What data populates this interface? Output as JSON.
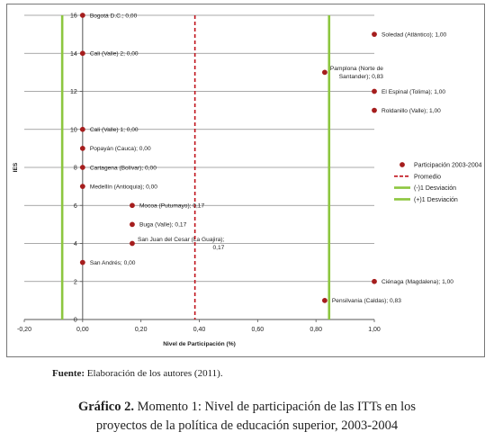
{
  "chart_data": {
    "type": "scatter",
    "xlabel": "Nivel de Participación  (%)",
    "ylabel": "IES",
    "xlim": [
      -0.2,
      1.0
    ],
    "ylim": [
      0,
      16
    ],
    "x_ticks": [
      "-0,20",
      "0,00",
      "0,20",
      "0,40",
      "0,60",
      "0,80",
      "1,00"
    ],
    "x_tick_values": [
      -0.2,
      0.0,
      0.2,
      0.4,
      0.6,
      0.8,
      1.0
    ],
    "y_ticks": [
      "0",
      "2",
      "4",
      "6",
      "8",
      "10",
      "12",
      "14",
      "16"
    ],
    "y_tick_values": [
      0,
      2,
      4,
      6,
      8,
      10,
      12,
      14,
      16
    ],
    "grid": "horizontal",
    "legend_position": "right",
    "points": [
      {
        "x": 0.0,
        "y": 16,
        "label": "Bogotá D.C.; 0,00"
      },
      {
        "x": 1.0,
        "y": 15,
        "label": "Soledad (Atlántico); 1,00"
      },
      {
        "x": 0.0,
        "y": 14,
        "label": "Cali (Valle) 2; 0,00"
      },
      {
        "x": 0.83,
        "y": 13,
        "label_lines": [
          "Pamplona (Norte de",
          "Santander); 0,83"
        ]
      },
      {
        "x": 1.0,
        "y": 12,
        "label": "El Espinal (Tolima); 1,00"
      },
      {
        "x": 1.0,
        "y": 11,
        "label": "Roldanillo (Valle); 1,00"
      },
      {
        "x": 0.0,
        "y": 10,
        "label": "Cali (Valle) 1; 0,00"
      },
      {
        "x": 0.0,
        "y": 9,
        "label": "Popayán (Cauca); 0,00"
      },
      {
        "x": 0.0,
        "y": 8,
        "label": "Cartagena (Bolívar); 0,00"
      },
      {
        "x": 0.0,
        "y": 7,
        "label": "Medellín (Antioquia); 0,00"
      },
      {
        "x": 0.17,
        "y": 6,
        "label": "Mocoa (Putumayo); 0,17"
      },
      {
        "x": 0.17,
        "y": 5,
        "label": "Buga (Valle); 0,17"
      },
      {
        "x": 0.17,
        "y": 4,
        "label_lines": [
          "San Juan del Cesar (La Guajira);",
          "0,17"
        ]
      },
      {
        "x": 0.0,
        "y": 3,
        "label": "San Andrés; 0,00"
      },
      {
        "x": 1.0,
        "y": 2,
        "label": "Ciénaga (Magdalena); 1,00"
      },
      {
        "x": 0.83,
        "y": 1,
        "label": "Pensilvania (Caldas); 0,83"
      }
    ],
    "reference_lines": {
      "promedio": 0.385,
      "menos_1_desviacion": -0.07,
      "mas_1_desviacion": 0.845
    },
    "legend": [
      {
        "label": "Participación 2003-2004",
        "kind": "marker",
        "color": "#a51d1d"
      },
      {
        "label": "Promedio",
        "kind": "dashed-line",
        "color": "#c0121b"
      },
      {
        "label": "(-)1 Desviación",
        "kind": "line",
        "color": "#8dc63f"
      },
      {
        "label": "(+)1 Desviación",
        "kind": "line",
        "color": "#8dc63f"
      }
    ],
    "colors": {
      "marker": "#a51d1d",
      "promedio": "#c0121b",
      "desviacion": "#8dc63f",
      "grid": "#8c8c8c"
    }
  },
  "source": {
    "label": "Fuente:",
    "text": " Elaboración de los autores (2011)."
  },
  "caption": {
    "label": "Gráfico 2.",
    "line1": " Momento 1: Nivel de participación de las ITTs en los",
    "line2": "proyectos de la  política de educación superior, 2003-2004"
  }
}
